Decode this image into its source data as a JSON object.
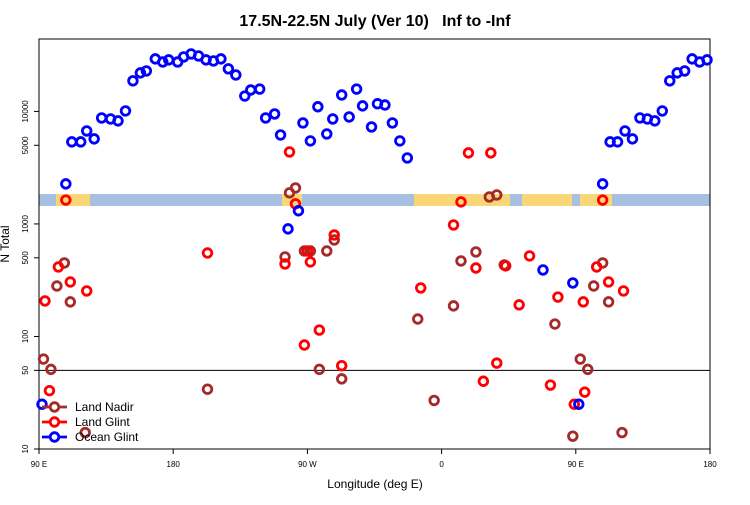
{
  "chart_data": {
    "type": "scatter",
    "title": "17.5N-22.5N July (Ver 10)   Inf to -Inf",
    "x_label": "Longitude (deg E)",
    "y_label": "N Total",
    "xlim": [
      90,
      540
    ],
    "xticks": [
      {
        "value": 90,
        "label": "90 E"
      },
      180,
      {
        "value": 270,
        "label": "90 W"
      },
      {
        "value": 360,
        "label": "0"
      },
      {
        "value": 450,
        "label": "90 E"
      },
      {
        "value": 540,
        "label": "180"
      }
    ],
    "ylim": [
      10,
      44000
    ],
    "log_y": true,
    "yticks": [
      10,
      50,
      100,
      500,
      1000,
      5000,
      10000
    ],
    "hline": 50,
    "legend": "lower left",
    "series": [
      {
        "name": "Land Nadir",
        "color": "#a52a2a",
        "x": [
          93,
          98,
          102,
          107,
          111,
          121,
          203,
          258,
          262,
          255,
          268,
          272,
          278,
          283,
          288,
          293,
          344,
          355,
          368,
          373,
          383,
          392,
          397,
          402,
          436,
          448,
          453,
          458,
          462,
          468,
          472,
          481
        ],
        "values": [
          63,
          51,
          281,
          450,
          203,
          14,
          34,
          1890,
          2090,
          509,
          575,
          575,
          51,
          575,
          721,
          42,
          143,
          27,
          187,
          469,
          564,
          1738,
          1811,
          432,
          129,
          13,
          63,
          51,
          281,
          450,
          203,
          14
        ]
      },
      {
        "name": "Land Glint",
        "color": "#ff0000",
        "x": [
          108,
          94,
          97,
          103,
          111,
          122,
          203,
          258,
          262,
          255,
          270,
          268,
          272,
          278,
          288,
          293,
          346,
          368,
          373,
          378,
          393,
          383,
          388,
          397,
          403,
          412,
          419,
          433,
          438,
          449,
          455,
          456,
          464,
          468,
          472,
          482
        ],
        "values": [
          1630,
          207,
          33,
          415,
          305,
          254,
          552,
          4365,
          1510,
          441,
          575,
          84,
          460,
          114,
          798,
          55,
          270,
          980,
          1570,
          4280,
          4280,
          406,
          40,
          58,
          424,
          191,
          520,
          37,
          224,
          25,
          203,
          32,
          415,
          1630,
          305,
          254
        ]
      },
      {
        "name": "Ocean Glint",
        "color": "#0000ff",
        "x": [
          108,
          112,
          118,
          122,
          127,
          132,
          138,
          143,
          148,
          153,
          158,
          162,
          168,
          173,
          177,
          183,
          187,
          192,
          197,
          202,
          207,
          212,
          217,
          222,
          228,
          232,
          238,
          242,
          248,
          252,
          267,
          272,
          277,
          283,
          287,
          293,
          298,
          303,
          307,
          313,
          317,
          322,
          327,
          332,
          337,
          468,
          473,
          478,
          483,
          488,
          493,
          498,
          503,
          508,
          513,
          518,
          523,
          528,
          533,
          538,
          92,
          257,
          264,
          428,
          448,
          452
        ],
        "values": [
          2270,
          5360,
          5360,
          6710,
          5700,
          8750,
          8570,
          8240,
          10100,
          18700,
          22000,
          22900,
          29300,
          27500,
          28700,
          27500,
          30500,
          32400,
          31100,
          28700,
          28100,
          29300,
          23900,
          21100,
          13700,
          15500,
          15800,
          8750,
          9500,
          6180,
          7900,
          5470,
          11000,
          6310,
          8570,
          14000,
          8930,
          15800,
          11200,
          7280,
          11700,
          11400,
          7900,
          5470,
          3860,
          2270,
          5360,
          5360,
          6710,
          5700,
          8750,
          8570,
          8240,
          10100,
          18700,
          22000,
          22900,
          29300,
          27500,
          28700,
          25,
          904,
          1310,
          390,
          299,
          25
        ]
      }
    ]
  }
}
